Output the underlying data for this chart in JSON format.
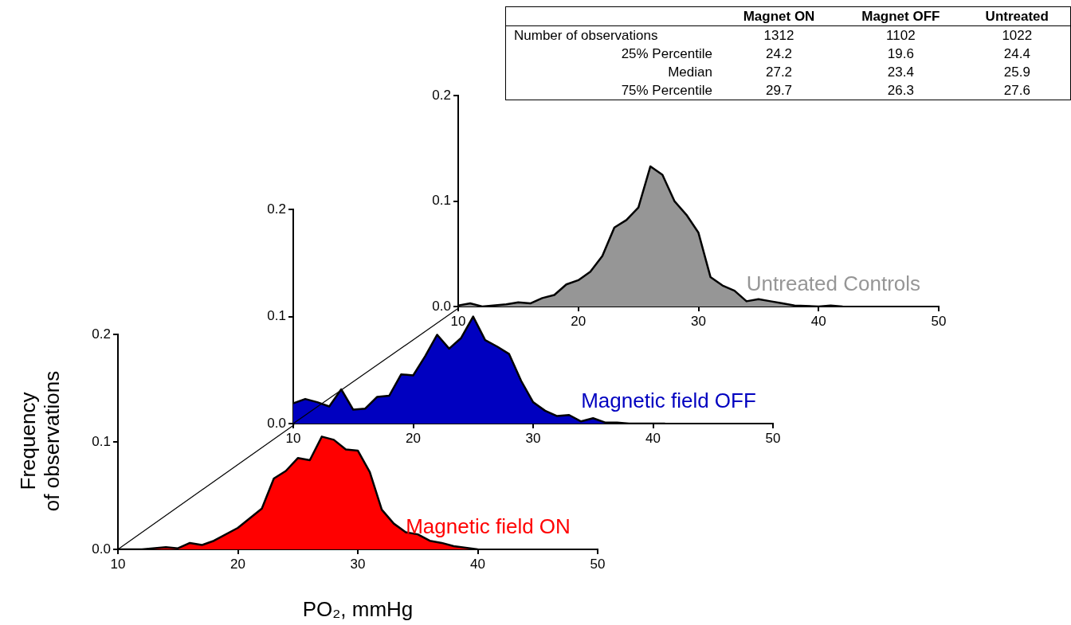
{
  "chart_data": [
    {
      "type": "area",
      "xlabel": "PO₂, mmHg",
      "ylabel": "Frequency\nof observations",
      "xlim": [
        10,
        50
      ],
      "xticks": [
        10,
        20,
        30,
        40,
        50
      ],
      "ylim": [
        0,
        0.2
      ],
      "yticks": [
        {
          "value": 0,
          "label": "0.0"
        },
        {
          "value": 0.1,
          "label": "0.1"
        },
        {
          "value": 0.2,
          "label": "0.2"
        }
      ],
      "grid": false,
      "series": [
        {
          "name": "Magnetic field ON",
          "color": "#ff0000",
          "x": [
            10,
            12,
            14,
            15,
            16,
            17,
            18,
            20,
            22,
            23,
            24,
            25,
            26,
            27,
            28,
            29,
            30,
            31,
            32,
            33,
            34,
            35,
            36,
            37,
            38,
            40
          ],
          "values": [
            0,
            0,
            0.002,
            0.001,
            0.006,
            0.004,
            0.008,
            0.02,
            0.038,
            0.066,
            0.073,
            0.085,
            0.083,
            0.105,
            0.102,
            0.093,
            0.092,
            0.072,
            0.037,
            0.024,
            0.016,
            0.014,
            0.008,
            0.006,
            0.003,
            0
          ]
        },
        {
          "type": "line",
          "color": "#000000",
          "x": [
            10,
            24.7
          ],
          "values": [
            0,
            0.116
          ]
        }
      ]
    },
    {
      "type": "area",
      "xlim": [
        10,
        50
      ],
      "xticks": [
        10,
        20,
        30,
        40,
        50
      ],
      "ylim": [
        0,
        0.2
      ],
      "yticks": [
        {
          "value": 0,
          "label": "0.0"
        },
        {
          "value": 0.1,
          "label": "0.1"
        },
        {
          "value": 0.2,
          "label": "0.2"
        }
      ],
      "grid": false,
      "series": [
        {
          "name": "Magnetic field OFF",
          "color": "#0000c0",
          "x": [
            10,
            11,
            12,
            13,
            14,
            15,
            16,
            17,
            18,
            19,
            20,
            21,
            22,
            23,
            24,
            25,
            26,
            27,
            28,
            29,
            30,
            31,
            32,
            33,
            34,
            35,
            36,
            37,
            38,
            41
          ],
          "values": [
            0.019,
            0.023,
            0.02,
            0.016,
            0.032,
            0.013,
            0.014,
            0.025,
            0.026,
            0.046,
            0.045,
            0.063,
            0.083,
            0.07,
            0.08,
            0.1,
            0.078,
            0.072,
            0.065,
            0.04,
            0.02,
            0.012,
            0.007,
            0.008,
            0.002,
            0.005,
            0.001,
            0.001,
            0,
            0
          ]
        },
        {
          "type": "line",
          "color": "#000000",
          "x": [
            10,
            23.8
          ],
          "values": [
            0,
            0.108
          ]
        }
      ]
    },
    {
      "type": "area",
      "xlim": [
        10,
        50
      ],
      "xticks": [
        10,
        20,
        30,
        40,
        50
      ],
      "ylim": [
        0,
        0.2
      ],
      "yticks": [
        {
          "value": 0,
          "label": "0.0"
        },
        {
          "value": 0.1,
          "label": "0.1"
        },
        {
          "value": 0.2,
          "label": "0.2"
        }
      ],
      "grid": false,
      "series": [
        {
          "name": "Untreated Controls",
          "color": "#969696",
          "x": [
            10,
            11,
            12,
            14,
            15,
            16,
            17,
            18,
            19,
            20,
            21,
            22,
            23,
            24,
            25,
            26,
            27,
            28,
            29,
            30,
            31,
            32,
            33,
            34,
            35,
            36,
            37,
            38,
            40,
            41,
            42
          ],
          "values": [
            0.001,
            0.003,
            0,
            0.002,
            0.004,
            0.003,
            0.008,
            0.011,
            0.021,
            0.025,
            0.033,
            0.048,
            0.075,
            0.082,
            0.094,
            0.133,
            0.125,
            0.1,
            0.087,
            0.07,
            0.028,
            0.02,
            0.015,
            0.005,
            0.007,
            0.005,
            0.003,
            0.001,
            0,
            0.001,
            0
          ]
        }
      ]
    },
    {
      "type": "other",
      "data_labels": true,
      "categories": [
        "Magnet ON",
        "Magnet OFF",
        "Untreated"
      ],
      "y_categories": [
        "Number of observations",
        "25% Percentile",
        "Median",
        "75% Percentile"
      ],
      "cells": [
        [
          "1312",
          "1102",
          "1022"
        ],
        [
          "24.2",
          "19.6",
          "24.4"
        ],
        [
          "27.2",
          "23.4",
          "25.9"
        ],
        [
          "29.7",
          "26.3",
          "27.6"
        ]
      ]
    }
  ]
}
